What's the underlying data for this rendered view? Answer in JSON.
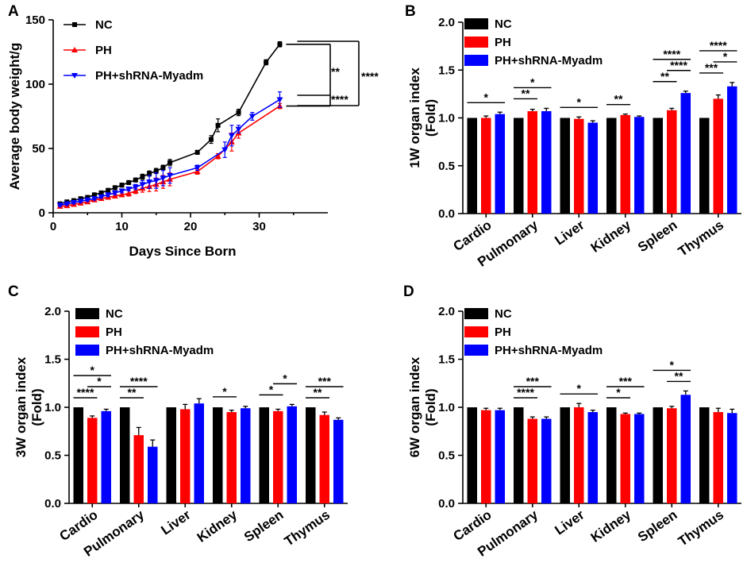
{
  "colors": {
    "nc": "#000000",
    "ph": "#ff0000",
    "sh": "#0000ff"
  },
  "chart_data": [
    {
      "panel": "A",
      "type": "line",
      "xlabel": "Days Since Born",
      "ylabel": "Average body weight/g",
      "xlim": [
        0,
        40
      ],
      "ylim": [
        0,
        150
      ],
      "xticks": [
        "0",
        "10",
        "20",
        "30"
      ],
      "yticks": [
        "0",
        "50",
        "100",
        "150"
      ],
      "legend": [
        "NC",
        "PH",
        "PH+shRNA-Myadm"
      ],
      "series": [
        {
          "name": "NC",
          "x": [
            1,
            2,
            3,
            4,
            5,
            6,
            7,
            8,
            9,
            10,
            11,
            12,
            13,
            14,
            15,
            16,
            17,
            21,
            23,
            24,
            27,
            31,
            33
          ],
          "y": [
            7,
            8.5,
            9.5,
            11,
            12,
            14,
            15.5,
            17.5,
            19.5,
            21.5,
            23.5,
            25.5,
            28,
            30.5,
            32.5,
            35,
            39,
            47,
            57,
            68,
            78,
            117,
            131
          ],
          "err": [
            1,
            1,
            1,
            1,
            1,
            1,
            1,
            1,
            1.5,
            1.5,
            1.5,
            1.5,
            2,
            2,
            2,
            2,
            2.5,
            1.5,
            3,
            5,
            2.5,
            2,
            2
          ]
        },
        {
          "name": "PH",
          "x": [
            1,
            2,
            3,
            4,
            5,
            6,
            7,
            8,
            9,
            10,
            11,
            12,
            13,
            14,
            15,
            16,
            17,
            21,
            24,
            26,
            27,
            33
          ],
          "y": [
            5,
            5.5,
            6.5,
            7.5,
            8.5,
            10,
            11,
            12,
            13,
            14,
            15,
            17,
            19,
            20.5,
            22,
            24,
            26,
            32,
            44,
            55,
            62,
            83
          ],
          "err": [
            1,
            1,
            1,
            1,
            1,
            1,
            1,
            1,
            1.5,
            1.5,
            2,
            2,
            3,
            4,
            5,
            5,
            5,
            2,
            2,
            7,
            4,
            2
          ]
        },
        {
          "name": "PH+shRNA-Myadm",
          "x": [
            1,
            2,
            3,
            4,
            5,
            6,
            7,
            8,
            9,
            10,
            11,
            12,
            13,
            14,
            15,
            16,
            17,
            21,
            25,
            26,
            27,
            29,
            33
          ],
          "y": [
            6,
            7,
            8,
            9,
            10,
            11,
            12.5,
            14,
            15.5,
            17,
            18.5,
            20,
            22,
            24,
            25,
            27,
            29,
            35,
            49,
            60,
            65,
            75,
            88
          ],
          "err": [
            1,
            1,
            1,
            1,
            1,
            1,
            1,
            1.5,
            1.5,
            1.5,
            1.5,
            2,
            3,
            5,
            6,
            6,
            6,
            2,
            6,
            8,
            3,
            3,
            6
          ]
        }
      ],
      "annotations": [
        "**",
        "****",
        "****"
      ]
    },
    {
      "panel": "B",
      "type": "bar",
      "ylabel": [
        "1W organ index",
        "(Fold)"
      ],
      "ylim": [
        0,
        2.0
      ],
      "yticks": [
        "0.0",
        "0.5",
        "1.0",
        "1.5",
        "2.0"
      ],
      "categories": [
        "Cardio",
        "Pulmonary",
        "Liver",
        "Kidney",
        "Spleen",
        "Thymus"
      ],
      "legend": [
        "NC",
        "PH",
        "PH+shRNA-Myadm"
      ],
      "series": [
        {
          "name": "NC",
          "values": [
            1,
            1,
            1,
            1,
            1,
            1
          ],
          "err": [
            0,
            0,
            0,
            0,
            0,
            0
          ]
        },
        {
          "name": "PH",
          "values": [
            1.0,
            1.07,
            0.99,
            1.03,
            1.08,
            1.2
          ],
          "err": [
            0.02,
            0.02,
            0.02,
            0.01,
            0.02,
            0.04
          ]
        },
        {
          "name": "PH+shRNA-Myadm",
          "values": [
            1.04,
            1.07,
            0.95,
            1.01,
            1.26,
            1.33
          ],
          "err": [
            0.02,
            0.03,
            0.02,
            0.01,
            0.02,
            0.04
          ]
        }
      ],
      "significance": [
        {
          "cat": 0,
          "from": 0,
          "to": 2,
          "level": 1,
          "label": "*"
        },
        {
          "cat": 1,
          "from": 0,
          "to": 1,
          "level": 1,
          "label": "**"
        },
        {
          "cat": 1,
          "from": 0,
          "to": 2,
          "level": 2,
          "label": "*"
        },
        {
          "cat": 2,
          "from": 0,
          "to": 2,
          "level": 1,
          "label": "*"
        },
        {
          "cat": 3,
          "from": 0,
          "to": 1,
          "level": 1,
          "label": "**"
        },
        {
          "cat": 4,
          "from": 0,
          "to": 1,
          "level": 1,
          "label": "**"
        },
        {
          "cat": 4,
          "from": 1,
          "to": 2,
          "level": 2,
          "label": "****"
        },
        {
          "cat": 4,
          "from": 0,
          "to": 2,
          "level": 3,
          "label": "****"
        },
        {
          "cat": 5,
          "from": 0,
          "to": 1,
          "level": 1,
          "label": "***"
        },
        {
          "cat": 5,
          "from": 1,
          "to": 2,
          "level": 2,
          "label": "*"
        },
        {
          "cat": 5,
          "from": 0,
          "to": 2,
          "level": 3,
          "label": "****"
        }
      ]
    },
    {
      "panel": "C",
      "type": "bar",
      "ylabel": [
        "3W organ index",
        "(Fold)"
      ],
      "ylim": [
        0,
        2.0
      ],
      "yticks": [
        "0.0",
        "0.5",
        "1.0",
        "1.5",
        "2.0"
      ],
      "categories": [
        "Cardio",
        "Pulmonary",
        "Liver",
        "Kidney",
        "Spleen",
        "Thymus"
      ],
      "legend": [
        "NC",
        "PH",
        "PH+shRNA-Myadm"
      ],
      "series": [
        {
          "name": "NC",
          "values": [
            1,
            1,
            1,
            1,
            1,
            1
          ],
          "err": [
            0,
            0,
            0,
            0,
            0,
            0
          ]
        },
        {
          "name": "PH",
          "values": [
            0.89,
            0.71,
            0.98,
            0.95,
            0.96,
            0.92
          ],
          "err": [
            0.02,
            0.08,
            0.05,
            0.02,
            0.02,
            0.03
          ]
        },
        {
          "name": "PH+shRNA-Myadm",
          "values": [
            0.96,
            0.59,
            1.04,
            0.99,
            1.01,
            0.87
          ],
          "err": [
            0.02,
            0.07,
            0.05,
            0.02,
            0.02,
            0.02
          ]
        }
      ],
      "significance": [
        {
          "cat": 0,
          "from": 0,
          "to": 1,
          "level": 1,
          "label": "****"
        },
        {
          "cat": 0,
          "from": 1,
          "to": 2,
          "level": 2,
          "label": "*"
        },
        {
          "cat": 0,
          "from": 0,
          "to": 2,
          "level": 3,
          "label": "*"
        },
        {
          "cat": 1,
          "from": 0,
          "to": 1,
          "level": 1,
          "label": "**"
        },
        {
          "cat": 1,
          "from": 0,
          "to": 2,
          "level": 2,
          "label": "****"
        },
        {
          "cat": 3,
          "from": 0,
          "to": 1,
          "level": 1,
          "label": "*"
        },
        {
          "cat": 4,
          "from": 0,
          "to": 1,
          "level": 1,
          "label": "*"
        },
        {
          "cat": 4,
          "from": 1,
          "to": 2,
          "level": 2,
          "label": "*"
        },
        {
          "cat": 5,
          "from": 0,
          "to": 1,
          "level": 1,
          "label": "**"
        },
        {
          "cat": 5,
          "from": 0,
          "to": 2,
          "level": 2,
          "label": "***"
        }
      ]
    },
    {
      "panel": "D",
      "type": "bar",
      "ylabel": [
        "6W organ index",
        "(Fold)"
      ],
      "ylim": [
        0,
        2.0
      ],
      "yticks": [
        "0.0",
        "0.5",
        "1.0",
        "1.5",
        "2.0"
      ],
      "categories": [
        "Cardio",
        "Pulmonary",
        "Liver",
        "Kidney",
        "Spleen",
        "Thymus"
      ],
      "legend": [
        "NC",
        "PH",
        "PH+shRNA-Myadm"
      ],
      "series": [
        {
          "name": "NC",
          "values": [
            1,
            1,
            1,
            1,
            1,
            1
          ],
          "err": [
            0,
            0,
            0,
            0,
            0,
            0
          ]
        },
        {
          "name": "PH",
          "values": [
            0.97,
            0.88,
            1.0,
            0.93,
            0.99,
            0.95
          ],
          "err": [
            0.02,
            0.02,
            0.04,
            0.01,
            0.02,
            0.04
          ]
        },
        {
          "name": "PH+shRNA-Myadm",
          "values": [
            0.97,
            0.88,
            0.95,
            0.93,
            1.13,
            0.94
          ],
          "err": [
            0.02,
            0.02,
            0.02,
            0.01,
            0.04,
            0.04
          ]
        }
      ],
      "significance": [
        {
          "cat": 1,
          "from": 0,
          "to": 1,
          "level": 1,
          "label": "****"
        },
        {
          "cat": 1,
          "from": 0,
          "to": 2,
          "level": 2,
          "label": "***"
        },
        {
          "cat": 2,
          "from": 0,
          "to": 2,
          "level": 1,
          "label": "*"
        },
        {
          "cat": 3,
          "from": 0,
          "to": 1,
          "level": 1,
          "label": "*"
        },
        {
          "cat": 3,
          "from": 0,
          "to": 2,
          "level": 2,
          "label": "***"
        },
        {
          "cat": 4,
          "from": 1,
          "to": 2,
          "level": 1,
          "label": "**"
        },
        {
          "cat": 4,
          "from": 0,
          "to": 2,
          "level": 2,
          "label": "*"
        }
      ]
    }
  ]
}
